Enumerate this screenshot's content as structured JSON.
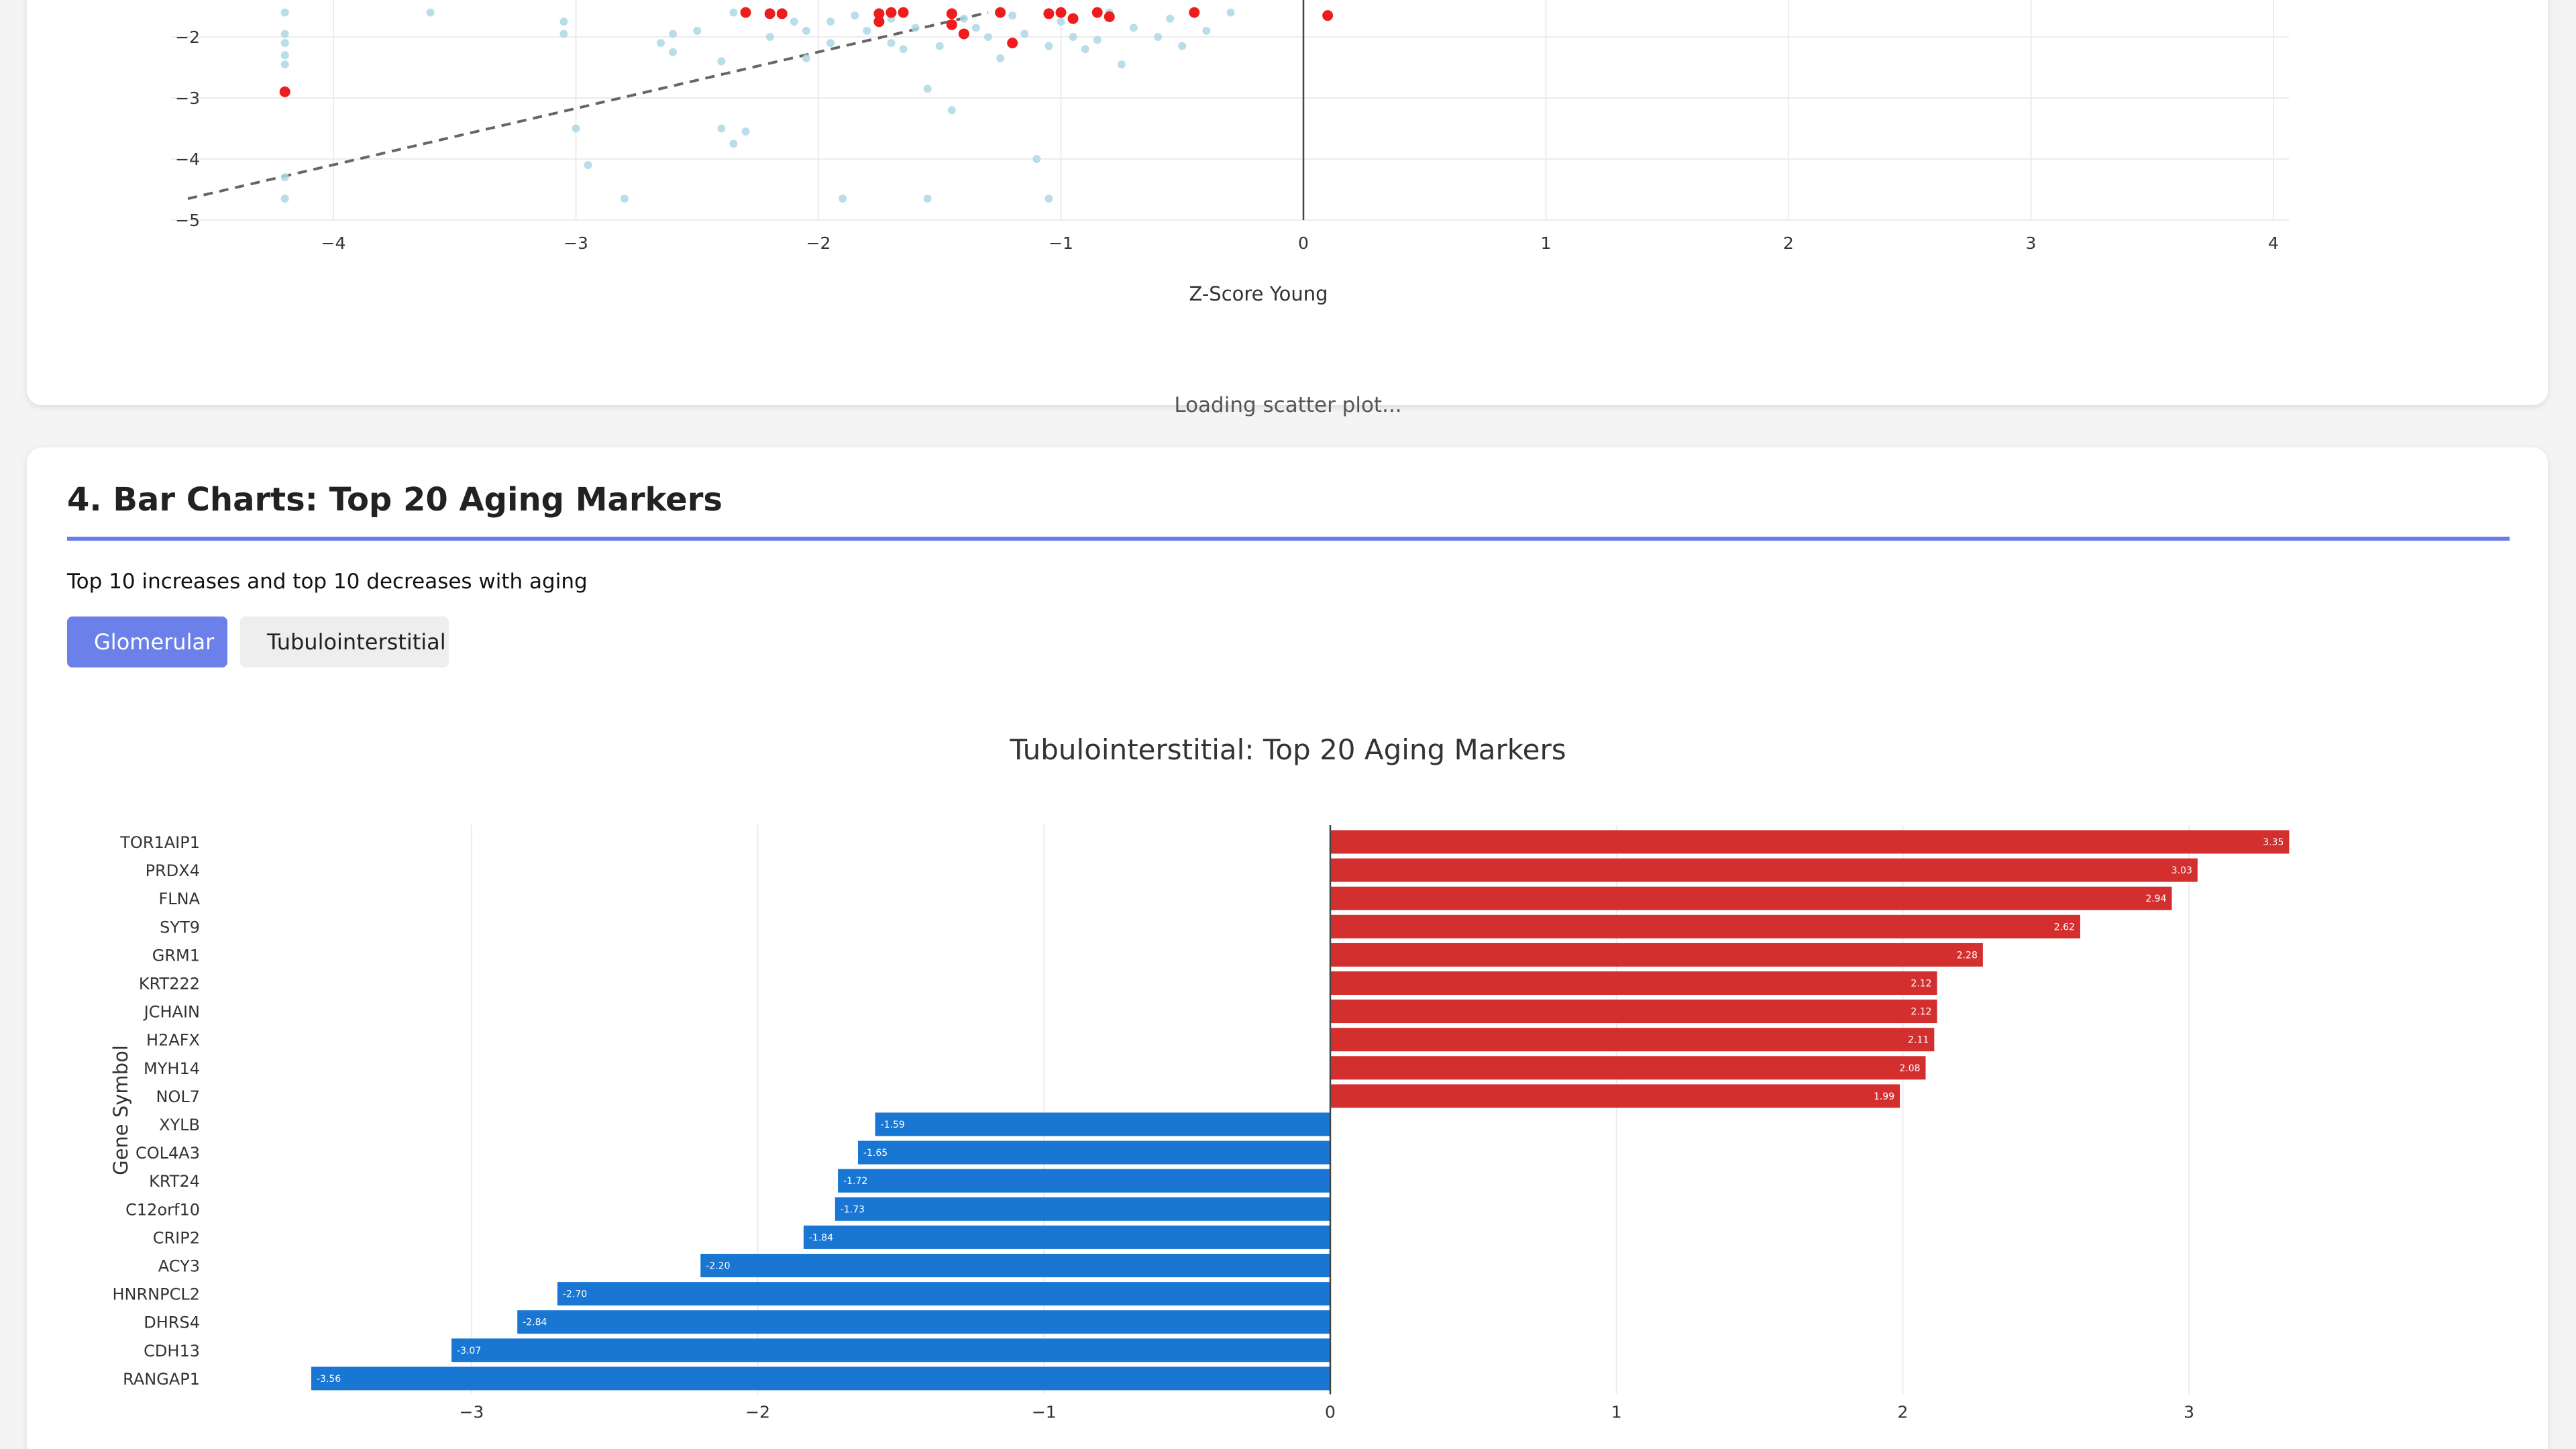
{
  "scatter_section": {
    "loading_text": "Loading scatter plot...",
    "x_axis_title": "Z-Score Young",
    "x_ticks": [
      "−4",
      "−3",
      "−2",
      "−1",
      "0",
      "1",
      "2",
      "3",
      "4"
    ],
    "y_ticks": [
      "−2",
      "−3",
      "−4",
      "−5"
    ],
    "colors": {
      "background_points": "#add8e6",
      "highlight_points": "#ee1c1c",
      "fit_line": "#666666"
    }
  },
  "bar_section": {
    "title": "4. Bar Charts: Top 20 Aging Markers",
    "subtitle": "Top 10 increases and top 10 decreases with aging",
    "buttons": {
      "glomerular": "Glomerular",
      "tubulointerstitial": "Tubulointerstitial"
    },
    "colors": {
      "accent": "#6b80e8",
      "increase": "#d32f2f",
      "decrease": "#1976d2"
    }
  },
  "chart_data": [
    {
      "type": "scatter",
      "title": "",
      "xlabel": "Z-Score Young",
      "xlim": [
        -4.6,
        4.0
      ],
      "ylim": [
        -5.0,
        -1.6
      ],
      "grid": true,
      "series": [
        {
          "points": [
            [
              -4.2,
              -1.6
            ],
            [
              -4.2,
              -1.95
            ],
            [
              -4.2,
              -2.1
            ],
            [
              -4.2,
              -2.3
            ],
            [
              -4.2,
              -2.45
            ],
            [
              -4.2,
              -4.3
            ],
            [
              -4.2,
              -4.65
            ],
            [
              -3.6,
              -1.6
            ],
            [
              -3.05,
              -1.75
            ],
            [
              -3.05,
              -1.95
            ],
            [
              -3.0,
              -3.5
            ],
            [
              -2.95,
              -4.1
            ],
            [
              -2.8,
              -4.65
            ],
            [
              -2.65,
              -2.1
            ],
            [
              -2.6,
              -2.25
            ],
            [
              -2.6,
              -1.95
            ],
            [
              -2.5,
              -1.9
            ],
            [
              -2.4,
              -3.5
            ],
            [
              -2.4,
              -2.4
            ],
            [
              -2.35,
              -1.6
            ],
            [
              -2.35,
              -3.75
            ],
            [
              -2.3,
              -3.55
            ],
            [
              -2.2,
              -2.0
            ],
            [
              -2.1,
              -1.75
            ],
            [
              -2.05,
              -1.9
            ],
            [
              -2.05,
              -2.35
            ],
            [
              -1.95,
              -1.75
            ],
            [
              -1.95,
              -2.1
            ],
            [
              -1.9,
              -4.65
            ],
            [
              -1.85,
              -1.65
            ],
            [
              -1.8,
              -1.9
            ],
            [
              -1.7,
              -2.1
            ],
            [
              -1.7,
              -1.7
            ],
            [
              -1.65,
              -2.2
            ],
            [
              -1.6,
              -1.85
            ],
            [
              -1.55,
              -4.65
            ],
            [
              -1.55,
              -2.85
            ],
            [
              -1.5,
              -2.15
            ],
            [
              -1.45,
              -3.2
            ],
            [
              -1.4,
              -1.7
            ],
            [
              -1.35,
              -1.85
            ],
            [
              -1.3,
              -2.0
            ],
            [
              -1.25,
              -2.35
            ],
            [
              -1.2,
              -1.65
            ],
            [
              -1.15,
              -1.95
            ],
            [
              -1.1,
              -4.0
            ],
            [
              -1.05,
              -2.15
            ],
            [
              -1.05,
              -4.65
            ],
            [
              -1.0,
              -1.75
            ],
            [
              -0.95,
              -2.0
            ],
            [
              -0.9,
              -2.2
            ],
            [
              -0.85,
              -2.05
            ],
            [
              -0.8,
              -1.6
            ],
            [
              -0.75,
              -2.45
            ],
            [
              -0.7,
              -1.85
            ],
            [
              -0.6,
              -2.0
            ],
            [
              -0.55,
              -1.7
            ],
            [
              -0.5,
              -2.15
            ],
            [
              -0.4,
              -1.9
            ],
            [
              -0.3,
              -1.6
            ]
          ]
        },
        {
          "points": [
            [
              -4.2,
              -2.9
            ],
            [
              -2.3,
              -1.6
            ],
            [
              -2.2,
              -1.62
            ],
            [
              -2.15,
              -1.62
            ],
            [
              -1.75,
              -1.62
            ],
            [
              -1.75,
              -1.75
            ],
            [
              -1.7,
              -1.6
            ],
            [
              -1.65,
              -1.6
            ],
            [
              -1.45,
              -1.8
            ],
            [
              -1.45,
              -1.62
            ],
            [
              -1.4,
              -1.95
            ],
            [
              -1.25,
              -1.6
            ],
            [
              -1.2,
              -2.1
            ],
            [
              -1.05,
              -1.62
            ],
            [
              -1.0,
              -1.6
            ],
            [
              -0.95,
              -1.7
            ],
            [
              -0.85,
              -1.6
            ],
            [
              -0.8,
              -1.67
            ],
            [
              -0.45,
              -1.6
            ],
            [
              0.1,
              -1.65
            ]
          ]
        }
      ],
      "fit_line": [
        [
          -4.6,
          -4.65
        ],
        [
          -1.3,
          -1.6
        ]
      ]
    },
    {
      "type": "bar",
      "orientation": "horizontal",
      "title": "Tubulointerstitial: Top 20 Aging Markers",
      "ylabel": "Gene Symbol",
      "xlim": [
        -3.7,
        3.5
      ],
      "x_ticks": [
        -3,
        -2,
        -1,
        0,
        1,
        2,
        3
      ],
      "x_tick_labels": [
        "−3",
        "−2",
        "−1",
        "0",
        "1",
        "2",
        "3"
      ],
      "categories": [
        "TOR1AIP1",
        "PRDX4",
        "FLNA",
        "SYT9",
        "GRM1",
        "KRT222",
        "JCHAIN",
        "H2AFX",
        "MYH14",
        "NOL7",
        "XYLB",
        "COL4A3",
        "KRT24",
        "C12orf10",
        "CRIP2",
        "ACY3",
        "HNRNPCL2",
        "DHRS4",
        "CDH13",
        "RANGAP1"
      ],
      "values": [
        3.35,
        3.03,
        2.94,
        2.62,
        2.28,
        2.12,
        2.12,
        2.11,
        2.08,
        1.99,
        -1.59,
        -1.65,
        -1.72,
        -1.73,
        -1.84,
        -2.2,
        -2.7,
        -2.84,
        -3.07,
        -3.56
      ],
      "labels": [
        "3.35",
        "3.03",
        "2.94",
        "2.62",
        "2.28",
        "2.12",
        "2.12",
        "2.11",
        "2.08",
        "1.99",
        "-1.59",
        "-1.65",
        "-1.72",
        "-1.73",
        "-1.84",
        "-2.20",
        "-2.70",
        "-2.84",
        "-3.07",
        "-3.56"
      ]
    }
  ]
}
